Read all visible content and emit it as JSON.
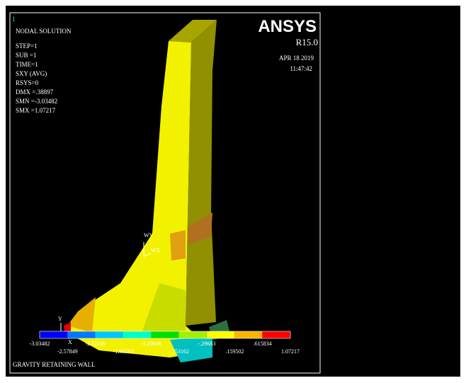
{
  "window_number": "1",
  "info": [
    "NODAL SOLUTION",
    "STEP=1",
    "SUB =1",
    "TIME=1",
    "SXY     (AVG)",
    "RSYS=0",
    "DMX =.38897",
    "SMN =-3.03482",
    "SMX =1.07217"
  ],
  "brand": {
    "name": "ANSYS",
    "release": "R15.0",
    "date": "APR 18 2019",
    "time": "11:47:42"
  },
  "axes": {
    "wy": "WY",
    "wx": "WX",
    "y": "Y",
    "x": "X"
  },
  "legend": {
    "labels": [
      "-3.03482",
      "-2.57849",
      "-2.12216",
      "-1.66583",
      "-1.20949",
      "-.753162",
      "-.29683",
      ".159502",
      ".615834",
      "1.07217"
    ]
  },
  "caption": "GRAVITY RETAINING WALL"
}
